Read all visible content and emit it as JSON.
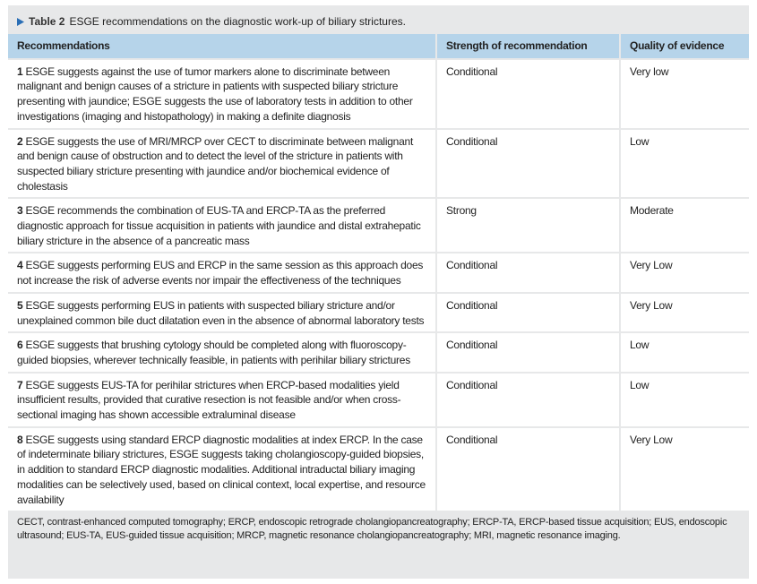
{
  "caption": {
    "label": "Table 2",
    "title": "ESGE recommendations on the diagnostic work-up of biliary strictures."
  },
  "table": {
    "headers": [
      "Recommendations",
      "Strength of recommendation",
      "Quality of evidence"
    ],
    "rows": [
      {
        "number": "1",
        "recommendation": "ESGE suggests against the use of tumor markers alone to discriminate between malignant and benign causes of a stricture in patients with suspected biliary stricture presenting with jaundice; ESGE suggests the use of laboratory tests in addition to other investigations (imaging and histopathology) in making a definite diagnosis",
        "strength": "Conditional",
        "quality": "Very low"
      },
      {
        "number": "2",
        "recommendation": "ESGE suggests the use of MRI/MRCP over CECT to discriminate between malignant and benign cause of obstruction and to detect the level of the stricture in patients with suspected biliary stricture presenting with jaundice and/or biochemical evidence of cholestasis",
        "strength": "Conditional",
        "quality": "Low"
      },
      {
        "number": "3",
        "recommendation": "ESGE recommends the combination of EUS-TA and ERCP-TA as the preferred diagnostic approach for tissue acquisition in patients with jaundice and distal extrahepatic biliary stricture in the absence of a pancreatic mass",
        "strength": "Strong",
        "quality": "Moderate"
      },
      {
        "number": "4",
        "recommendation": "ESGE suggests performing EUS and ERCP in the same session as this approach does not increase the risk of adverse events nor impair the effectiveness of the techniques",
        "strength": "Conditional",
        "quality": "Very Low"
      },
      {
        "number": "5",
        "recommendation": "ESGE suggests performing EUS in patients with suspected biliary stricture and/or unexplained common bile duct dilatation even in the absence of abnormal laboratory tests",
        "strength": "Conditional",
        "quality": "Very Low"
      },
      {
        "number": "6",
        "recommendation": "ESGE suggests that brushing cytology should be completed along with fluoroscopy-guided biopsies, wherever technically feasible, in patients with perihilar biliary strictures",
        "strength": "Conditional",
        "quality": "Low"
      },
      {
        "number": "7",
        "recommendation": "ESGE suggests EUS-TA for perihilar strictures when ERCP-based modalities yield insufficient results, provided that curative resection is not feasible and/or when cross-sectional imaging has shown accessible extraluminal disease",
        "strength": "Conditional",
        "quality": "Low"
      },
      {
        "number": "8",
        "recommendation": "ESGE suggests using standard ERCP diagnostic modalities at index ERCP. In the case of indeterminate biliary strictures, ESGE suggests taking cholangioscopy-guided biopsies, in addition to standard ERCP diagnostic modalities. Additional intraductal biliary imaging modalities can be selectively used, based on clinical context, local expertise, and resource availability",
        "strength": "Conditional",
        "quality": "Very Low"
      }
    ]
  },
  "footnote": "CECT, contrast-enhanced computed tomography; ERCP, endoscopic retrograde cholangiopancreatography; ERCP-TA, ERCP-based tissue acquisition; EUS, endoscopic ultrasound; EUS-TA, EUS-guided tissue acquisition; MRCP, magnetic resonance cholangiopancreatography; MRI, magnetic resonance imaging."
}
